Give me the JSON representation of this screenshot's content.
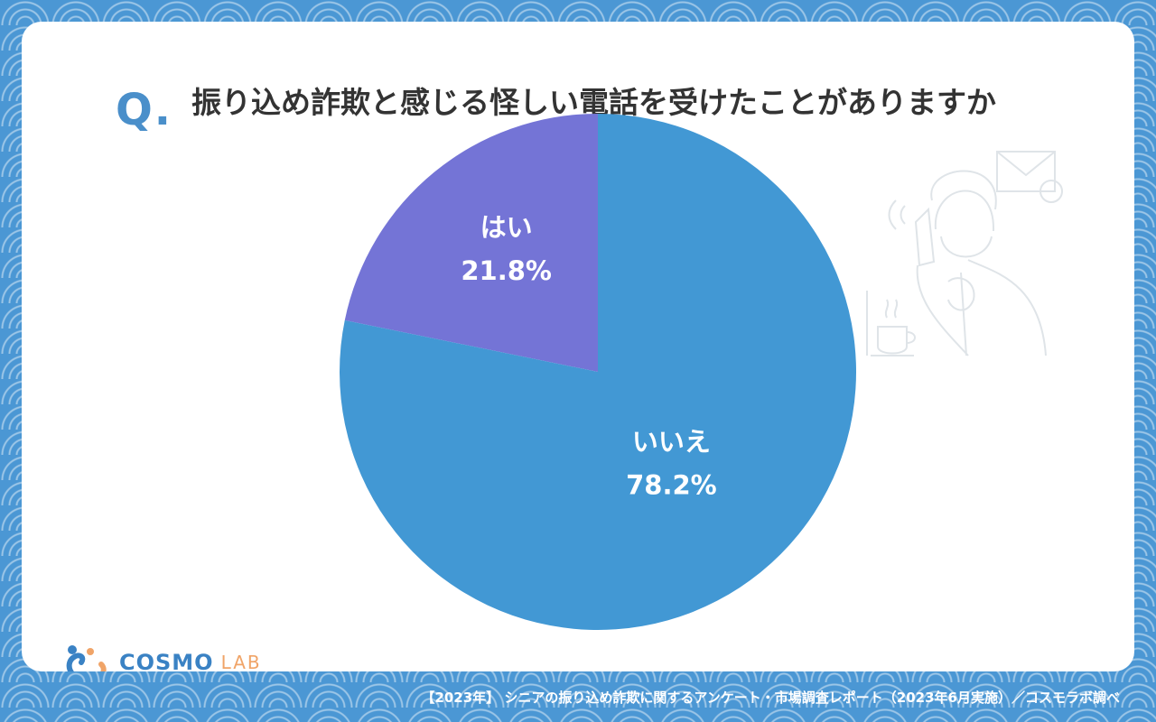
{
  "question_mark": "Q.",
  "title": "振り込め詐欺と感じる怪しい電話を受けたことがありますか",
  "chart_data": {
    "type": "pie",
    "title": "振り込め詐欺と感じる怪しい電話を受けたことがありますか",
    "categories": [
      "はい",
      "いいえ"
    ],
    "values": [
      21.8,
      78.2
    ],
    "value_labels": [
      "21.8%",
      "78.2%"
    ],
    "colors": [
      "#7474d6",
      "#4298d4"
    ],
    "legend": "none"
  },
  "logo": {
    "part1": "COSMO",
    "part2": "LAB"
  },
  "source": "【2023年】 シニアの振り込め詐欺に関するアンケート・市場調査レポート（2023年6月実施）／コスモラボ調べ",
  "icons": {
    "illustration": "elderly-man-phone-icon",
    "logo": "cosmo-lab-logo-icon"
  }
}
